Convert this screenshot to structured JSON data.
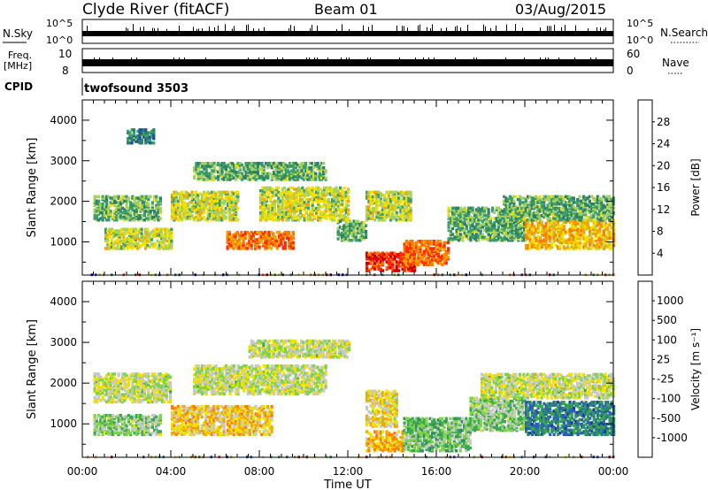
{
  "header": {
    "station": "Clyde River (fitACF)",
    "beam": "Beam 01",
    "date": "03/Aug/2015"
  },
  "strips": {
    "nsky_label": "N.Sky",
    "nsky_ticks": [
      "10^5",
      "10^0"
    ],
    "nsearch_label": "N.Search",
    "nsearch_ticks": [
      "10^5",
      "10^0"
    ],
    "freq_label": "Freq.",
    "freq_unit": "[MHz]",
    "freq_ticks": [
      "10",
      "8"
    ],
    "nave_label": "Nave",
    "nave_ticks": [
      "60",
      "0"
    ],
    "cpid_label": "CPID",
    "cpid_value": "twofsound 3503"
  },
  "chart_data": [
    {
      "type": "heatmap",
      "panel": "power",
      "title": "",
      "ylabel": "Slant Range [km]",
      "xlabel": "",
      "x_ticks": [
        "00:00",
        "04:00",
        "08:00",
        "12:00",
        "16:00",
        "20:00",
        "00:00"
      ],
      "xlim_hours": [
        0,
        24
      ],
      "ylim": [
        180,
        4500
      ],
      "y_ticks": [
        1000,
        2000,
        3000,
        4000
      ],
      "colorbar_label": "Power [dB]",
      "colorbar_ticks": [
        "28",
        "24",
        "20",
        "16",
        "12",
        "8",
        "4"
      ],
      "colorbar_colors": [
        "#cc0000",
        "#ff2a00",
        "#ff7a00",
        "#f0a800",
        "#f2e000",
        "#a8d060",
        "#3c9e6a",
        "#2a7f64",
        "#1f4ea8",
        "#0000ff"
      ],
      "colorbar_min": 0,
      "colorbar_max": 32,
      "regions": [
        {
          "t0": 0.5,
          "t1": 3.5,
          "r0": 1500,
          "r1": 2100,
          "value": 12
        },
        {
          "t0": 1.0,
          "t1": 4.0,
          "r0": 800,
          "r1": 1300,
          "value": 16
        },
        {
          "t0": 4.0,
          "t1": 7.0,
          "r0": 1500,
          "r1": 2200,
          "value": 16
        },
        {
          "t0": 6.5,
          "t1": 9.5,
          "r0": 800,
          "r1": 1200,
          "value": 24
        },
        {
          "t0": 5.0,
          "t1": 11.0,
          "r0": 2500,
          "r1": 2900,
          "value": 12
        },
        {
          "t0": 8.0,
          "t1": 12.0,
          "r0": 1500,
          "r1": 2300,
          "value": 16
        },
        {
          "t0": 11.5,
          "t1": 12.8,
          "r0": 1000,
          "r1": 1500,
          "value": 12
        },
        {
          "t0": 12.8,
          "t1": 15.0,
          "r0": 250,
          "r1": 700,
          "value": 28
        },
        {
          "t0": 14.5,
          "t1": 16.5,
          "r0": 400,
          "r1": 1000,
          "value": 24
        },
        {
          "t0": 12.8,
          "t1": 14.8,
          "r0": 1500,
          "r1": 2200,
          "value": 16
        },
        {
          "t0": 16.5,
          "t1": 20.0,
          "r0": 1000,
          "r1": 1800,
          "value": 12
        },
        {
          "t0": 20.0,
          "t1": 24.0,
          "r0": 800,
          "r1": 1500,
          "value": 20
        },
        {
          "t0": 19.0,
          "t1": 24.0,
          "r0": 1500,
          "r1": 2100,
          "value": 12
        },
        {
          "t0": 2.0,
          "t1": 3.2,
          "r0": 3400,
          "r1": 3750,
          "value": 8
        }
      ]
    },
    {
      "type": "heatmap",
      "panel": "velocity",
      "title": "",
      "ylabel": "Slant Range [km]",
      "xlabel": "Time UT",
      "x_ticks": [
        "00:00",
        "04:00",
        "08:00",
        "12:00",
        "16:00",
        "20:00",
        "00:00"
      ],
      "xlim_hours": [
        0,
        24
      ],
      "ylim": [
        180,
        4500
      ],
      "y_ticks": [
        1000,
        2000,
        3000,
        4000
      ],
      "colorbar_label": "Velocity [m s⁻¹]",
      "colorbar_ticks": [
        "1000",
        "500",
        "100",
        "25",
        "-25",
        "-100",
        "-500",
        "-1000"
      ],
      "colorbar_colors": [
        "#1a3aa0",
        "#2a5fb8",
        "#2f8a6a",
        "#3aa850",
        "#7fd34a",
        "#c8c8c8",
        "#f2e000",
        "#f0a800",
        "#ff7a00",
        "#ff2a00",
        "#cc0000"
      ],
      "colorbar_min": -1200,
      "colorbar_max": 1200,
      "regions": [
        {
          "t0": 0.5,
          "t1": 4.0,
          "r0": 1500,
          "r1": 2200,
          "value": 0
        },
        {
          "t0": 0.5,
          "t1": 3.5,
          "r0": 700,
          "r1": 1200,
          "value": 200
        },
        {
          "t0": 4.0,
          "t1": 8.5,
          "r0": 700,
          "r1": 1400,
          "value": -300
        },
        {
          "t0": 5.0,
          "t1": 11.0,
          "r0": 1700,
          "r1": 2400,
          "value": 0
        },
        {
          "t0": 7.5,
          "t1": 12.0,
          "r0": 2600,
          "r1": 3000,
          "value": 0
        },
        {
          "t0": 12.8,
          "t1": 14.5,
          "r0": 300,
          "r1": 800,
          "value": -400
        },
        {
          "t0": 12.8,
          "t1": 14.2,
          "r0": 900,
          "r1": 1800,
          "value": -200
        },
        {
          "t0": 14.5,
          "t1": 17.5,
          "r0": 300,
          "r1": 1100,
          "value": 300
        },
        {
          "t0": 17.5,
          "t1": 20.0,
          "r0": 800,
          "r1": 1600,
          "value": 200
        },
        {
          "t0": 20.0,
          "t1": 24.0,
          "r0": 700,
          "r1": 1500,
          "value": 700
        },
        {
          "t0": 18.0,
          "t1": 24.0,
          "r0": 1600,
          "r1": 2200,
          "value": 0
        }
      ]
    }
  ]
}
